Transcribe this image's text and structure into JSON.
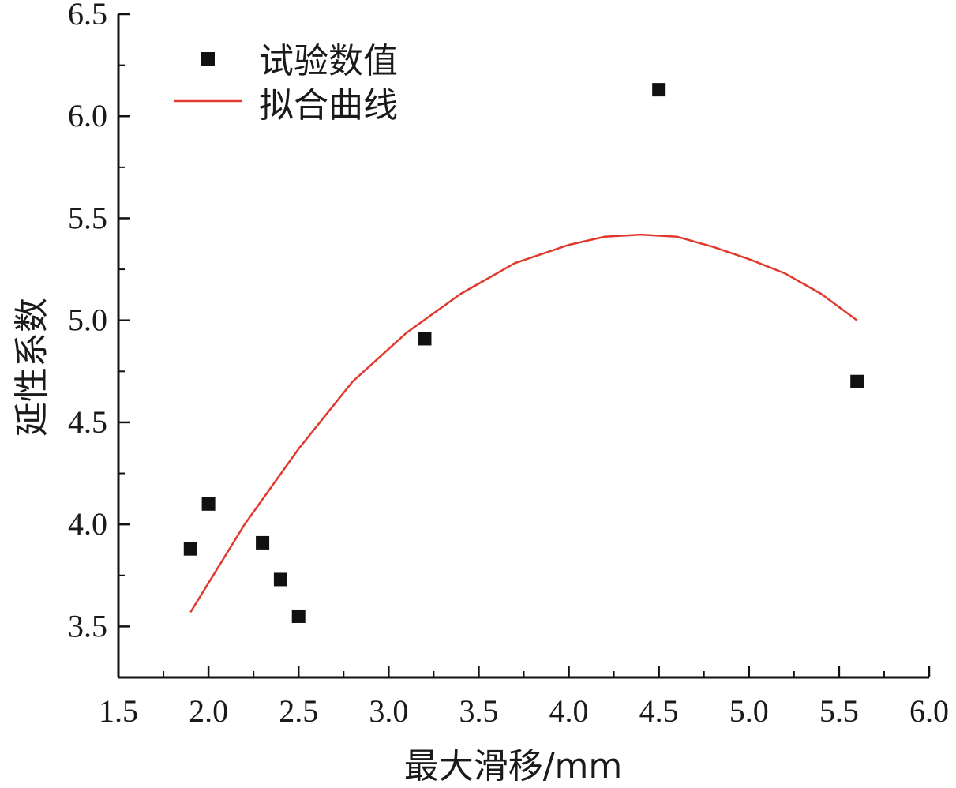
{
  "chart_data": {
    "type": "scatter",
    "xlabel": "最大滑移/mm",
    "ylabel": "延性系数",
    "xlim": [
      1.5,
      6.0
    ],
    "ylim": [
      3.25,
      6.5
    ],
    "xticks": [
      "1.5",
      "2.0",
      "2.5",
      "3.0",
      "3.5",
      "4.0",
      "4.5",
      "5.0",
      "5.5",
      "6.0"
    ],
    "yticks": [
      "3.5",
      "4.0",
      "4.5",
      "5.0",
      "5.5",
      "6.0",
      "6.5"
    ],
    "grid": false,
    "legend_position": "top-left",
    "series": [
      {
        "name": "试验数值",
        "kind": "scatter",
        "marker": "square",
        "color": "#111111",
        "points": [
          {
            "x": 1.9,
            "y": 3.88
          },
          {
            "x": 2.0,
            "y": 4.1
          },
          {
            "x": 2.3,
            "y": 3.91
          },
          {
            "x": 2.4,
            "y": 3.73
          },
          {
            "x": 2.5,
            "y": 3.55
          },
          {
            "x": 3.2,
            "y": 4.91
          },
          {
            "x": 4.5,
            "y": 6.13
          },
          {
            "x": 5.6,
            "y": 4.7
          }
        ]
      },
      {
        "name": "拟合曲线",
        "kind": "line",
        "color": "#e03a2f",
        "points": [
          {
            "x": 1.9,
            "y": 3.57
          },
          {
            "x": 2.2,
            "y": 4.0
          },
          {
            "x": 2.5,
            "y": 4.37
          },
          {
            "x": 2.8,
            "y": 4.7
          },
          {
            "x": 3.1,
            "y": 4.94
          },
          {
            "x": 3.4,
            "y": 5.13
          },
          {
            "x": 3.7,
            "y": 5.28
          },
          {
            "x": 4.0,
            "y": 5.37
          },
          {
            "x": 4.2,
            "y": 5.41
          },
          {
            "x": 4.4,
            "y": 5.42
          },
          {
            "x": 4.6,
            "y": 5.41
          },
          {
            "x": 4.8,
            "y": 5.36
          },
          {
            "x": 5.0,
            "y": 5.3
          },
          {
            "x": 5.2,
            "y": 5.23
          },
          {
            "x": 5.4,
            "y": 5.13
          },
          {
            "x": 5.6,
            "y": 5.0
          }
        ]
      }
    ]
  }
}
